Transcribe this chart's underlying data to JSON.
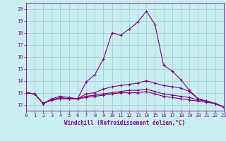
{
  "xlabel": "Windchill (Refroidissement éolien,°C)",
  "xlim": [
    0,
    23
  ],
  "ylim": [
    11.5,
    20.5
  ],
  "xticks": [
    0,
    1,
    2,
    3,
    4,
    5,
    6,
    7,
    8,
    9,
    10,
    11,
    12,
    13,
    14,
    15,
    16,
    17,
    18,
    19,
    20,
    21,
    22,
    23
  ],
  "yticks": [
    12,
    13,
    14,
    15,
    16,
    17,
    18,
    19,
    20
  ],
  "background_color": "#c8eef0",
  "grid_color": "#a0c8d0",
  "line_color": "#800080",
  "lines": [
    [
      13.0,
      12.9,
      12.1,
      12.5,
      12.7,
      12.6,
      12.5,
      13.9,
      14.5,
      15.8,
      18.0,
      17.8,
      18.3,
      18.9,
      19.8,
      18.7,
      15.3,
      14.8,
      14.1,
      13.2,
      12.5,
      12.3,
      12.1,
      11.8
    ],
    [
      13.0,
      12.9,
      12.1,
      12.4,
      12.6,
      12.5,
      12.5,
      12.9,
      13.0,
      13.3,
      13.5,
      13.6,
      13.7,
      13.8,
      14.0,
      13.8,
      13.6,
      13.5,
      13.4,
      13.1,
      12.5,
      12.3,
      12.1,
      11.8
    ],
    [
      13.0,
      12.9,
      12.1,
      12.4,
      12.5,
      12.5,
      12.5,
      12.7,
      12.8,
      12.9,
      13.0,
      13.1,
      13.2,
      13.2,
      13.3,
      13.1,
      12.9,
      12.8,
      12.7,
      12.6,
      12.4,
      12.3,
      12.1,
      11.8
    ],
    [
      13.0,
      12.9,
      12.1,
      12.4,
      12.5,
      12.5,
      12.5,
      12.6,
      12.7,
      12.8,
      12.9,
      13.0,
      13.0,
      13.0,
      13.1,
      12.9,
      12.7,
      12.6,
      12.5,
      12.4,
      12.3,
      12.2,
      12.1,
      11.8
    ]
  ],
  "marker": "+",
  "markersize": 3,
  "linewidth": 0.8
}
